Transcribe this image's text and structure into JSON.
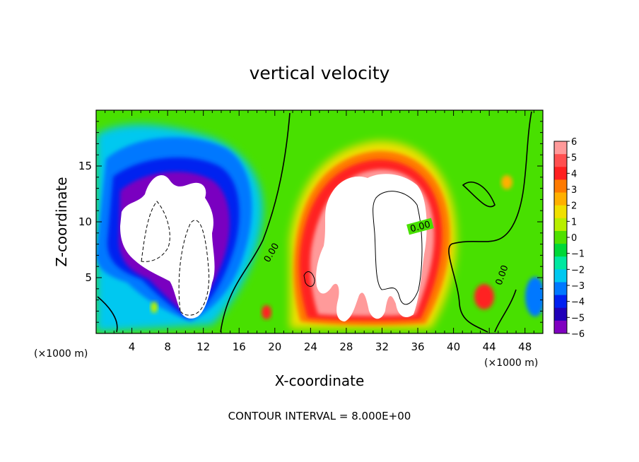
{
  "chart_data": {
    "type": "heatmap",
    "title": "vertical velocity",
    "xlabel": "X-coordinate",
    "ylabel": "Z-coordinate",
    "x_unit_left": "(×1000 m)",
    "x_unit_right": "(×1000 m)",
    "footer": "CONTOUR INTERVAL = 8.000E+00",
    "xlim": [
      0,
      50
    ],
    "ylim": [
      0,
      20
    ],
    "x_ticks": [
      4,
      8,
      12,
      16,
      20,
      24,
      28,
      32,
      36,
      40,
      44,
      48
    ],
    "y_ticks": [
      5,
      10,
      15
    ],
    "colorbar": {
      "ticks": [
        6,
        5,
        4,
        3,
        2,
        1,
        0,
        -1,
        -2,
        -3,
        -4,
        -5,
        -6
      ],
      "tick_labels": [
        "6",
        "5",
        "4",
        "3",
        "2",
        "1",
        "0",
        "−1",
        "−2",
        "−3",
        "−4",
        "−5",
        "−6"
      ],
      "colors": [
        "#ff9a9a",
        "#ff5050",
        "#ff2020",
        "#ff7a00",
        "#ffb000",
        "#f0e000",
        "#b8ee00",
        "#50e000",
        "#00d838",
        "#00e8a0",
        "#00c8f0",
        "#0078ff",
        "#0020f0",
        "#2000b8",
        "#8000c0"
      ]
    },
    "background_color": "#48e000",
    "features": [
      {
        "kind": "updraft",
        "x": 32,
        "z": 10,
        "rx": 6.5,
        "rz": 6.5,
        "peak": 6
      },
      {
        "kind": "downdraft",
        "x": 8.5,
        "z": 11,
        "rx": 7,
        "rz": 7,
        "peak": -6
      },
      {
        "kind": "updraft",
        "x": 44,
        "z": 4,
        "rx": 1,
        "rz": 1,
        "peak": 4
      },
      {
        "kind": "updraft",
        "x": 46,
        "z": 13,
        "rx": 0.8,
        "rz": 1,
        "peak": 3
      },
      {
        "kind": "updraft",
        "x": 19,
        "z": 2,
        "rx": 0.6,
        "rz": 0.8,
        "peak": 5
      },
      {
        "kind": "downdraft",
        "x": 49,
        "z": 4,
        "rx": 1.5,
        "rz": 2,
        "peak": -5
      }
    ],
    "contour_labels": [
      {
        "text": "0.00",
        "x": 19.7,
        "z": 7.2
      },
      {
        "text": "0.00",
        "x": 36.3,
        "z": 9.5
      },
      {
        "text": "0.00",
        "x": 45.5,
        "z": 5.2
      }
    ]
  }
}
